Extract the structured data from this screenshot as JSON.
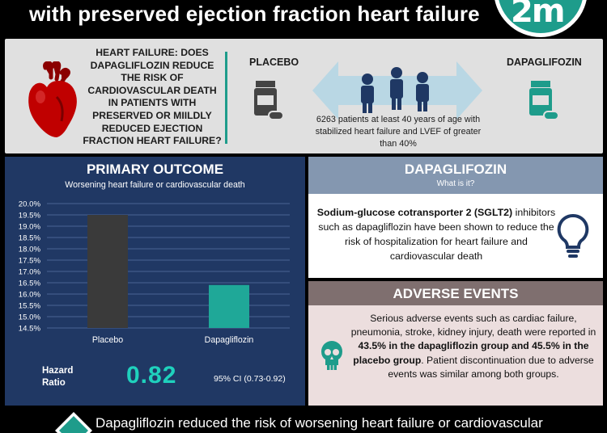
{
  "header": {
    "title": "with preserved ejection fraction heart failure",
    "logo_text": "2m"
  },
  "intro": {
    "question": "HEART FAILURE: DOES DAPAGLIFLOZIN REDUCE THE RISK OF CARDIOVASCULAR DEATH IN PATIENTS WITH PRESERVED OR MIILDLY REDUCED EJECTION FRACTION HEART FAILURE?",
    "placebo_label": "PLACEBO",
    "dapagliflozin_label": "DAPAGLIFOZIN",
    "patients_text": "6263 patients at least 40 years of age with stabilized heart failure and LVEF of greater than 40%"
  },
  "primary_outcome": {
    "title": "PRIMARY OUTCOME",
    "subtitle": "Worsening heart failure or cardiovascular death",
    "hazard_label": "Hazard Ratio",
    "hazard_value": "0.82",
    "ci": "95% CI (0.73-0.92)"
  },
  "chart_data": {
    "type": "bar",
    "categories": [
      "Placebo",
      "Dapagliflozin"
    ],
    "values": [
      19.5,
      16.4
    ],
    "ylim": [
      14.5,
      20.0
    ],
    "yticks": [
      "14.5%",
      "15.0%",
      "15.5%",
      "16.0%",
      "16.5%",
      "17.0%",
      "17.5%",
      "18.0%",
      "18.5%",
      "19.0%",
      "19.5%",
      "20.0%"
    ],
    "grid": true,
    "colors": [
      "#3a3a3a",
      "#1fa898"
    ],
    "title": "",
    "xlabel": "",
    "ylabel": ""
  },
  "dapagliflozin_info": {
    "title": "DAPAGLIFOZIN",
    "subtitle": "What is it?",
    "body_bold": "Sodium-glucose cotransporter 2 (SGLT2)",
    "body_rest": " inhibitors such as dapagliflozin have been shown to reduce the risk of hospitalization for heart failure and cardiovascular death"
  },
  "adverse_events": {
    "title": "ADVERSE EVENTS",
    "body_start": "Serious adverse events such as cardiac failure, pneumonia, stroke, kidney injury, death were reported in ",
    "body_highlight": "43.5% in the dapagliflozin group and 45.5% in the placebo group",
    "body_end": ". Patient discontinuation due to adverse events was similar among both groups."
  },
  "bottom": {
    "text": "Dapagliflozin reduced the risk of worsening heart failure or cardiovascular"
  },
  "colors": {
    "teal": "#1e9c8b",
    "navy": "#203864",
    "slate": "#8497b0",
    "brown_gray": "#7f6f6f",
    "hazard_teal": "#1fd1bd",
    "heart_red": "#c00000"
  },
  "icons": {
    "heart": "anatomical-heart-icon",
    "placebo": "pill-bottle-icon",
    "dapagliflozin": "pill-bottle-icon",
    "patients": "people-group-icon",
    "arrow": "double-arrow-icon",
    "bulb": "lightbulb-icon",
    "skull": "skull-icon",
    "bottom": "diamond-check-icon"
  }
}
